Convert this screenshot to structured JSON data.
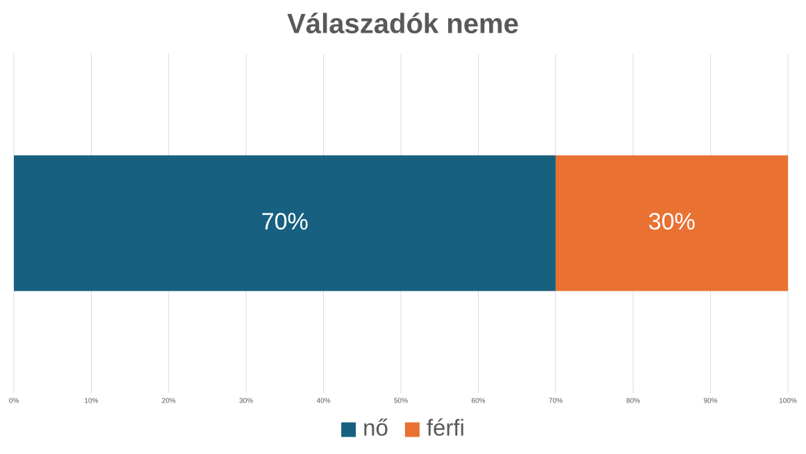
{
  "chart_data": {
    "type": "stacked-bar-horizontal",
    "title": "Válaszadók neme",
    "categories": [
      null
    ],
    "series": [
      {
        "name": "nő",
        "color": "#17607f",
        "values": [
          70
        ],
        "value_labels": [
          "70%"
        ]
      },
      {
        "name": "férfi",
        "color": "#e97132",
        "values": [
          30
        ],
        "value_labels": [
          "30%"
        ]
      }
    ],
    "xlim": [
      0,
      100
    ],
    "xticks": [
      {
        "value": 0,
        "label": "0%"
      },
      {
        "value": 10,
        "label": "10%"
      },
      {
        "value": 20,
        "label": "20%"
      },
      {
        "value": 30,
        "label": "30%"
      },
      {
        "value": 40,
        "label": "40%"
      },
      {
        "value": 50,
        "label": "50%"
      },
      {
        "value": 60,
        "label": "60%"
      },
      {
        "value": 70,
        "label": "70%"
      },
      {
        "value": 80,
        "label": "80%"
      },
      {
        "value": 90,
        "label": "90%"
      },
      {
        "value": 100,
        "label": "100%"
      }
    ],
    "grid": true,
    "legend": "bottom"
  }
}
